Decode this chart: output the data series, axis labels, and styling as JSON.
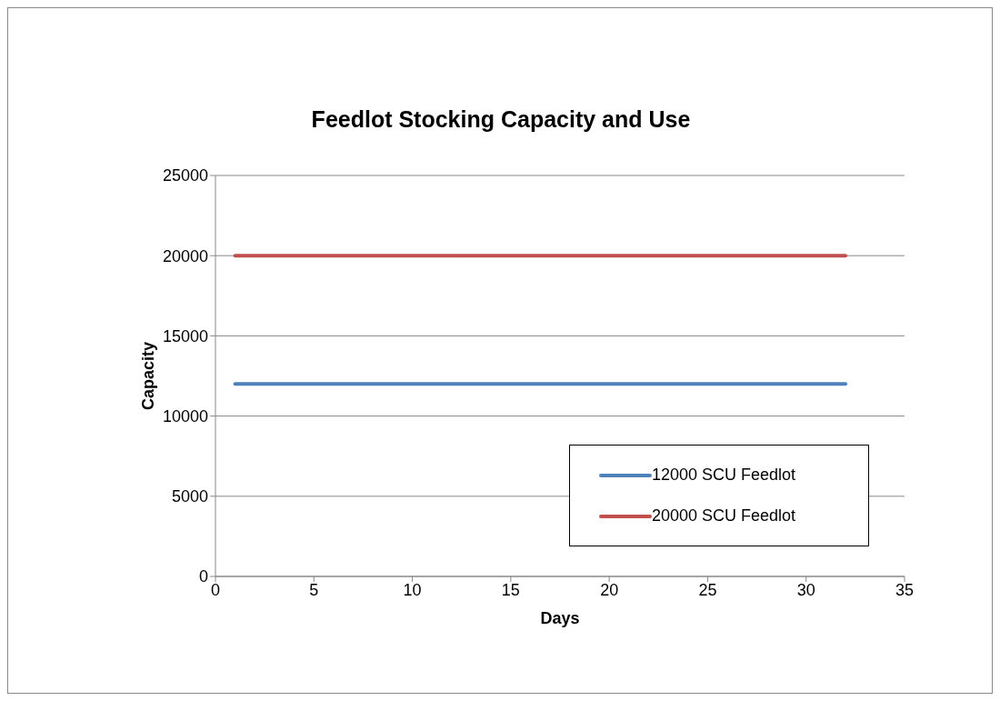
{
  "chart_data": {
    "type": "line",
    "title": "Feedlot Stocking Capacity and Use",
    "xlabel": "Days",
    "ylabel": "Capacity",
    "x": [
      1,
      32
    ],
    "series": [
      {
        "name": "12000 SCU Feedlot",
        "color": "#4f81bd",
        "values": [
          12000,
          12000
        ]
      },
      {
        "name": "20000 SCU Feedlot",
        "color": "#c0504d",
        "values": [
          20000,
          20000
        ]
      }
    ],
    "xlim": [
      0,
      35
    ],
    "xticks": [
      0,
      5,
      10,
      15,
      20,
      25,
      30,
      35
    ],
    "ylim": [
      0,
      25000
    ],
    "yticks": [
      0,
      5000,
      10000,
      15000,
      20000,
      25000
    ],
    "grid": "y",
    "legend": "bottom right",
    "marker": "none",
    "line_style": "solid"
  }
}
